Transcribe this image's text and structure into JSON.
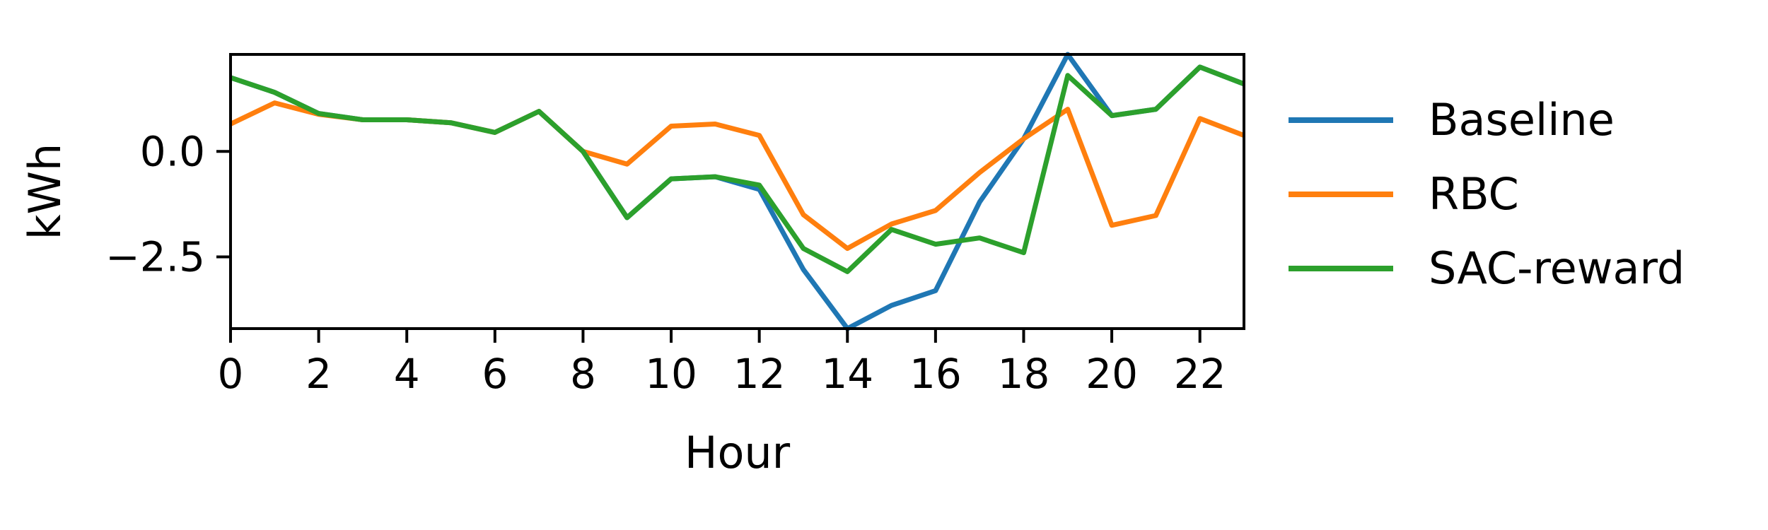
{
  "chart_data": {
    "type": "line",
    "title": "",
    "xlabel": "Hour",
    "ylabel": "kWh",
    "xlim": [
      0,
      23
    ],
    "ylim": [
      -4.2,
      2.3
    ],
    "x_ticks": [
      0,
      2,
      4,
      6,
      8,
      10,
      12,
      14,
      16,
      18,
      20,
      22
    ],
    "y_ticks": [
      0.0,
      -2.5
    ],
    "y_tick_labels": [
      "0.0",
      "−2.5"
    ],
    "grid": false,
    "legend_position": "right, outside plot",
    "x": [
      0,
      1,
      2,
      3,
      4,
      5,
      6,
      7,
      8,
      9,
      10,
      11,
      12,
      13,
      14,
      15,
      16,
      17,
      18,
      19,
      20,
      21,
      22,
      23
    ],
    "series": [
      {
        "name": "Baseline",
        "color": "#1f77b4",
        "values": [
          1.75,
          1.4,
          0.9,
          0.75,
          0.75,
          0.68,
          0.45,
          0.95,
          0.0,
          -1.57,
          -0.65,
          -0.6,
          -0.9,
          -2.8,
          -4.2,
          -3.65,
          -3.3,
          -1.2,
          0.3,
          2.3,
          0.85,
          1.0,
          2.0,
          1.6
        ]
      },
      {
        "name": "RBC",
        "color": "#ff7f0e",
        "values": [
          0.65,
          1.15,
          0.88,
          0.75,
          0.75,
          0.68,
          0.45,
          0.95,
          0.0,
          -0.3,
          0.6,
          0.65,
          0.38,
          -1.5,
          -2.3,
          -1.72,
          -1.4,
          -0.5,
          0.3,
          1.0,
          -1.75,
          -1.52,
          0.78,
          0.38
        ]
      },
      {
        "name": "SAC-reward",
        "color": "#2ca02c",
        "values": [
          1.75,
          1.4,
          0.9,
          0.75,
          0.75,
          0.68,
          0.45,
          0.95,
          0.0,
          -1.57,
          -0.65,
          -0.6,
          -0.8,
          -2.3,
          -2.85,
          -1.85,
          -2.2,
          -2.05,
          -2.4,
          1.8,
          0.85,
          1.0,
          2.0,
          1.6
        ]
      }
    ]
  }
}
